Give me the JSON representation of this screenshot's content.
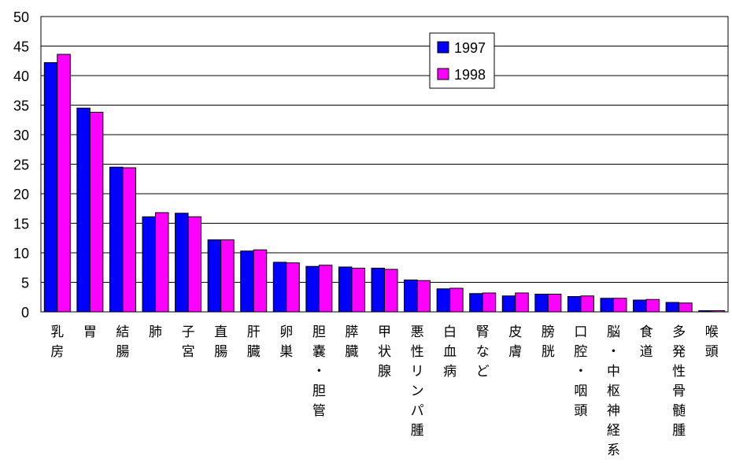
{
  "chart_data": {
    "type": "bar",
    "categories": [
      "乳房",
      "胃",
      "結腸",
      "肺",
      "子宮",
      "直腸",
      "肝臓",
      "卵巣",
      "胆嚢・胆管",
      "膵臓",
      "甲状腺",
      "悪性リンパ腫",
      "白血病",
      "腎など",
      "皮膚",
      "膀胱",
      "口腔・咽頭",
      "脳・中枢神経系",
      "食道",
      "多発性骨髄腫",
      "喉頭"
    ],
    "series": [
      {
        "name": "1997",
        "color": "#0000ff",
        "values": [
          42.2,
          34.5,
          24.5,
          16.1,
          16.7,
          12.2,
          10.3,
          8.4,
          7.7,
          7.6,
          7.4,
          5.4,
          3.9,
          3.1,
          2.7,
          3.0,
          2.6,
          2.3,
          2.0,
          1.6,
          0.2
        ]
      },
      {
        "name": "1998",
        "color": "#ff00ff",
        "values": [
          43.6,
          33.8,
          24.4,
          16.8,
          16.1,
          12.2,
          10.5,
          8.3,
          7.9,
          7.4,
          7.2,
          5.3,
          4.0,
          3.2,
          3.2,
          3.0,
          2.7,
          2.3,
          2.1,
          1.5,
          0.2
        ]
      }
    ],
    "ylim": [
      0,
      50
    ],
    "yticks": [
      0,
      5,
      10,
      15,
      20,
      25,
      30,
      35,
      40,
      45,
      50
    ],
    "grid": true,
    "legend_position": "top-right"
  }
}
